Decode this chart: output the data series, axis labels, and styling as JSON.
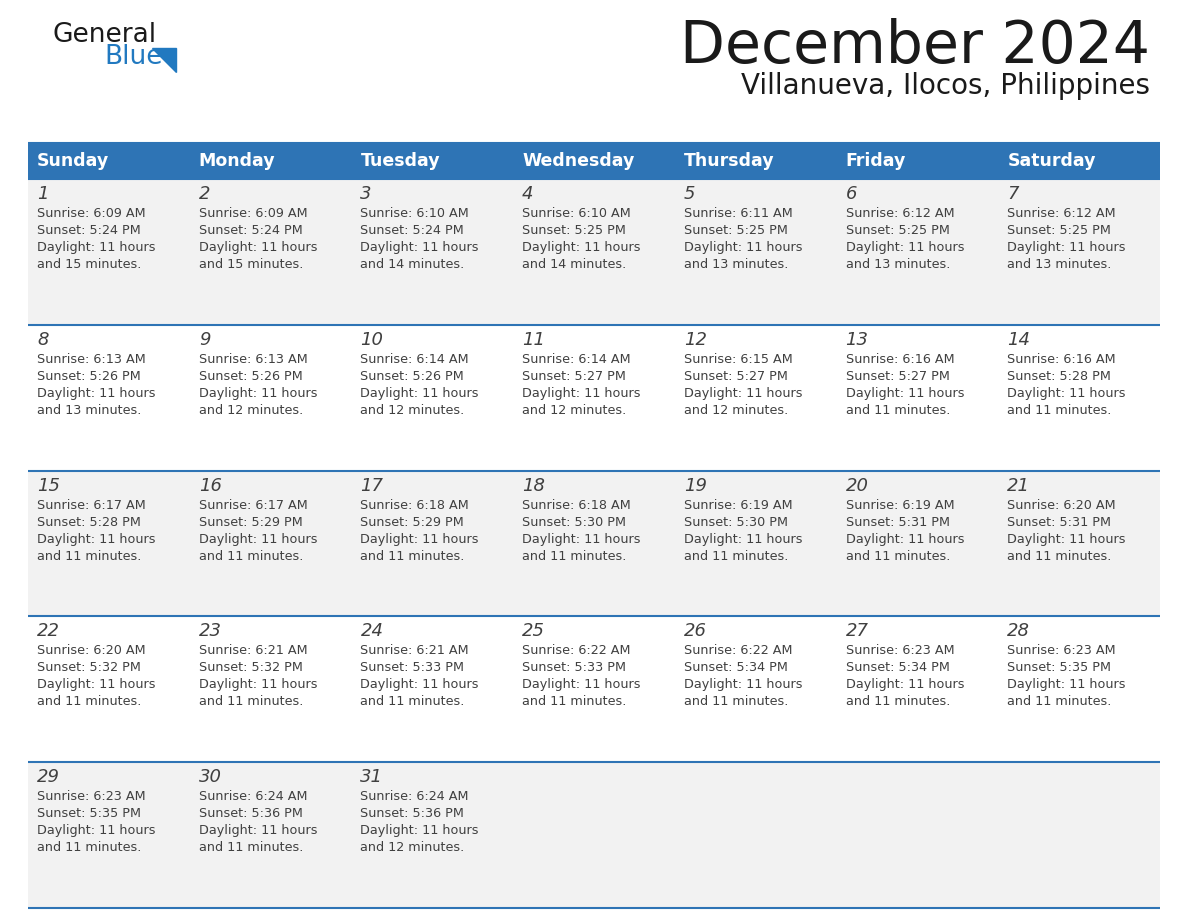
{
  "title": "December 2024",
  "subtitle": "Villanueva, Ilocos, Philippines",
  "header_bg_color": "#2E74B5",
  "header_text_color": "#FFFFFF",
  "cell_bg_color_even": "#F2F2F2",
  "cell_bg_color_odd": "#FFFFFF",
  "row_line_color": "#2E74B5",
  "text_color": "#404040",
  "days_of_week": [
    "Sunday",
    "Monday",
    "Tuesday",
    "Wednesday",
    "Thursday",
    "Friday",
    "Saturday"
  ],
  "calendar_data": [
    [
      {
        "day": 1,
        "sunrise": "6:09 AM",
        "sunset": "5:24 PM",
        "daylight_a": "Daylight: 11 hours",
        "daylight_b": "and 15 minutes."
      },
      {
        "day": 2,
        "sunrise": "6:09 AM",
        "sunset": "5:24 PM",
        "daylight_a": "Daylight: 11 hours",
        "daylight_b": "and 15 minutes."
      },
      {
        "day": 3,
        "sunrise": "6:10 AM",
        "sunset": "5:24 PM",
        "daylight_a": "Daylight: 11 hours",
        "daylight_b": "and 14 minutes."
      },
      {
        "day": 4,
        "sunrise": "6:10 AM",
        "sunset": "5:25 PM",
        "daylight_a": "Daylight: 11 hours",
        "daylight_b": "and 14 minutes."
      },
      {
        "day": 5,
        "sunrise": "6:11 AM",
        "sunset": "5:25 PM",
        "daylight_a": "Daylight: 11 hours",
        "daylight_b": "and 13 minutes."
      },
      {
        "day": 6,
        "sunrise": "6:12 AM",
        "sunset": "5:25 PM",
        "daylight_a": "Daylight: 11 hours",
        "daylight_b": "and 13 minutes."
      },
      {
        "day": 7,
        "sunrise": "6:12 AM",
        "sunset": "5:25 PM",
        "daylight_a": "Daylight: 11 hours",
        "daylight_b": "and 13 minutes."
      }
    ],
    [
      {
        "day": 8,
        "sunrise": "6:13 AM",
        "sunset": "5:26 PM",
        "daylight_a": "Daylight: 11 hours",
        "daylight_b": "and 13 minutes."
      },
      {
        "day": 9,
        "sunrise": "6:13 AM",
        "sunset": "5:26 PM",
        "daylight_a": "Daylight: 11 hours",
        "daylight_b": "and 12 minutes."
      },
      {
        "day": 10,
        "sunrise": "6:14 AM",
        "sunset": "5:26 PM",
        "daylight_a": "Daylight: 11 hours",
        "daylight_b": "and 12 minutes."
      },
      {
        "day": 11,
        "sunrise": "6:14 AM",
        "sunset": "5:27 PM",
        "daylight_a": "Daylight: 11 hours",
        "daylight_b": "and 12 minutes."
      },
      {
        "day": 12,
        "sunrise": "6:15 AM",
        "sunset": "5:27 PM",
        "daylight_a": "Daylight: 11 hours",
        "daylight_b": "and 12 minutes."
      },
      {
        "day": 13,
        "sunrise": "6:16 AM",
        "sunset": "5:27 PM",
        "daylight_a": "Daylight: 11 hours",
        "daylight_b": "and 11 minutes."
      },
      {
        "day": 14,
        "sunrise": "6:16 AM",
        "sunset": "5:28 PM",
        "daylight_a": "Daylight: 11 hours",
        "daylight_b": "and 11 minutes."
      }
    ],
    [
      {
        "day": 15,
        "sunrise": "6:17 AM",
        "sunset": "5:28 PM",
        "daylight_a": "Daylight: 11 hours",
        "daylight_b": "and 11 minutes."
      },
      {
        "day": 16,
        "sunrise": "6:17 AM",
        "sunset": "5:29 PM",
        "daylight_a": "Daylight: 11 hours",
        "daylight_b": "and 11 minutes."
      },
      {
        "day": 17,
        "sunrise": "6:18 AM",
        "sunset": "5:29 PM",
        "daylight_a": "Daylight: 11 hours",
        "daylight_b": "and 11 minutes."
      },
      {
        "day": 18,
        "sunrise": "6:18 AM",
        "sunset": "5:30 PM",
        "daylight_a": "Daylight: 11 hours",
        "daylight_b": "and 11 minutes."
      },
      {
        "day": 19,
        "sunrise": "6:19 AM",
        "sunset": "5:30 PM",
        "daylight_a": "Daylight: 11 hours",
        "daylight_b": "and 11 minutes."
      },
      {
        "day": 20,
        "sunrise": "6:19 AM",
        "sunset": "5:31 PM",
        "daylight_a": "Daylight: 11 hours",
        "daylight_b": "and 11 minutes."
      },
      {
        "day": 21,
        "sunrise": "6:20 AM",
        "sunset": "5:31 PM",
        "daylight_a": "Daylight: 11 hours",
        "daylight_b": "and 11 minutes."
      }
    ],
    [
      {
        "day": 22,
        "sunrise": "6:20 AM",
        "sunset": "5:32 PM",
        "daylight_a": "Daylight: 11 hours",
        "daylight_b": "and 11 minutes."
      },
      {
        "day": 23,
        "sunrise": "6:21 AM",
        "sunset": "5:32 PM",
        "daylight_a": "Daylight: 11 hours",
        "daylight_b": "and 11 minutes."
      },
      {
        "day": 24,
        "sunrise": "6:21 AM",
        "sunset": "5:33 PM",
        "daylight_a": "Daylight: 11 hours",
        "daylight_b": "and 11 minutes."
      },
      {
        "day": 25,
        "sunrise": "6:22 AM",
        "sunset": "5:33 PM",
        "daylight_a": "Daylight: 11 hours",
        "daylight_b": "and 11 minutes."
      },
      {
        "day": 26,
        "sunrise": "6:22 AM",
        "sunset": "5:34 PM",
        "daylight_a": "Daylight: 11 hours",
        "daylight_b": "and 11 minutes."
      },
      {
        "day": 27,
        "sunrise": "6:23 AM",
        "sunset": "5:34 PM",
        "daylight_a": "Daylight: 11 hours",
        "daylight_b": "and 11 minutes."
      },
      {
        "day": 28,
        "sunrise": "6:23 AM",
        "sunset": "5:35 PM",
        "daylight_a": "Daylight: 11 hours",
        "daylight_b": "and 11 minutes."
      }
    ],
    [
      {
        "day": 29,
        "sunrise": "6:23 AM",
        "sunset": "5:35 PM",
        "daylight_a": "Daylight: 11 hours",
        "daylight_b": "and 11 minutes."
      },
      {
        "day": 30,
        "sunrise": "6:24 AM",
        "sunset": "5:36 PM",
        "daylight_a": "Daylight: 11 hours",
        "daylight_b": "and 11 minutes."
      },
      {
        "day": 31,
        "sunrise": "6:24 AM",
        "sunset": "5:36 PM",
        "daylight_a": "Daylight: 11 hours",
        "daylight_b": "and 12 minutes."
      },
      null,
      null,
      null,
      null
    ]
  ],
  "logo_general_color": "#1a1a1a",
  "logo_blue_color": "#2179C0",
  "logo_triangle_color": "#2179C0",
  "title_color": "#1a1a1a",
  "subtitle_color": "#1a1a1a"
}
